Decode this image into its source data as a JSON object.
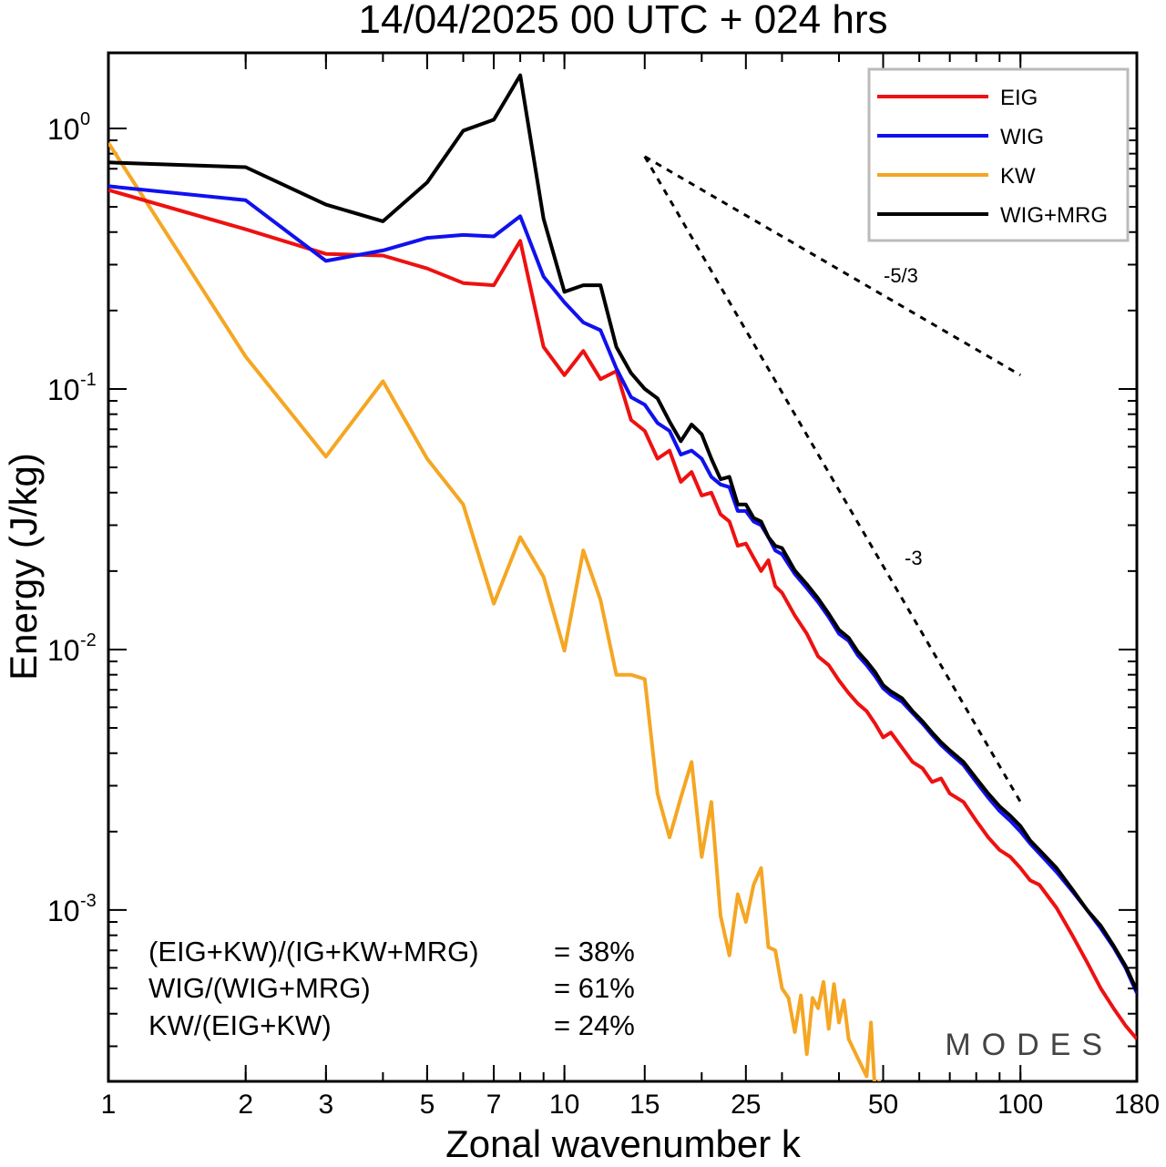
{
  "chart_data": {
    "type": "line",
    "title": "14/04/2025  00 UTC  + 024 hrs",
    "xlabel": "Zonal wavenumber k",
    "ylabel": "Energy (J/kg)",
    "xscale": "log",
    "yscale": "log",
    "xlim": [
      1,
      180
    ],
    "ylim": [
      0.00022,
      1.95
    ],
    "x_ticks": [
      1,
      2,
      3,
      5,
      7,
      10,
      15,
      25,
      50,
      100,
      180
    ],
    "y_ticks": [
      {
        "value": 1,
        "base": "10",
        "exp": "0"
      },
      {
        "value": 0.1,
        "base": "10",
        "exp": "-1"
      },
      {
        "value": 0.01,
        "base": "10",
        "exp": "-2"
      },
      {
        "value": 0.001,
        "base": "10",
        "exp": "-3"
      }
    ],
    "grid": false,
    "legend_position": "top-right",
    "series": [
      {
        "name": "EIG",
        "color": "#ee1111",
        "points": [
          [
            1,
            0.58
          ],
          [
            2,
            0.41
          ],
          [
            3,
            0.33
          ],
          [
            4,
            0.325
          ],
          [
            5,
            0.29
          ],
          [
            6,
            0.255
          ],
          [
            7,
            0.25
          ],
          [
            8,
            0.37
          ],
          [
            9,
            0.145
          ],
          [
            10,
            0.113
          ],
          [
            11,
            0.14
          ],
          [
            12,
            0.109
          ],
          [
            13,
            0.117
          ],
          [
            14,
            0.076
          ],
          [
            15,
            0.069
          ],
          [
            16,
            0.054
          ],
          [
            17,
            0.058
          ],
          [
            18,
            0.044
          ],
          [
            19,
            0.048
          ],
          [
            20,
            0.039
          ],
          [
            21,
            0.04
          ],
          [
            22,
            0.033
          ],
          [
            23,
            0.031
          ],
          [
            24,
            0.025
          ],
          [
            25,
            0.0255
          ],
          [
            26,
            0.0225
          ],
          [
            27,
            0.02
          ],
          [
            28,
            0.022
          ],
          [
            29,
            0.0175
          ],
          [
            30,
            0.0165
          ],
          [
            32,
            0.0135
          ],
          [
            34,
            0.0115
          ],
          [
            36,
            0.0094
          ],
          [
            38,
            0.0087
          ],
          [
            40,
            0.0076
          ],
          [
            42,
            0.0068
          ],
          [
            44,
            0.0062
          ],
          [
            46,
            0.0058
          ],
          [
            48,
            0.0052
          ],
          [
            50,
            0.0046
          ],
          [
            52,
            0.0048
          ],
          [
            55,
            0.0042
          ],
          [
            58,
            0.0037
          ],
          [
            61,
            0.0035
          ],
          [
            64,
            0.0031
          ],
          [
            67,
            0.0032
          ],
          [
            70,
            0.0028
          ],
          [
            75,
            0.0026
          ],
          [
            80,
            0.0022
          ],
          [
            85,
            0.0019
          ],
          [
            90,
            0.0017
          ],
          [
            95,
            0.0016
          ],
          [
            100,
            0.00145
          ],
          [
            105,
            0.0013
          ],
          [
            110,
            0.00125
          ],
          [
            120,
            0.00102
          ],
          [
            130,
            0.0008
          ],
          [
            140,
            0.00063
          ],
          [
            150,
            0.0005
          ],
          [
            160,
            0.00042
          ],
          [
            170,
            0.00036
          ],
          [
            180,
            0.00032
          ]
        ]
      },
      {
        "name": "WIG",
        "color": "#1111ee",
        "points": [
          [
            1,
            0.6
          ],
          [
            2,
            0.53
          ],
          [
            3,
            0.31
          ],
          [
            4,
            0.34
          ],
          [
            5,
            0.38
          ],
          [
            6,
            0.39
          ],
          [
            7,
            0.385
          ],
          [
            8,
            0.46
          ],
          [
            9,
            0.27
          ],
          [
            10,
            0.215
          ],
          [
            11,
            0.18
          ],
          [
            12,
            0.168
          ],
          [
            13,
            0.12
          ],
          [
            14,
            0.093
          ],
          [
            15,
            0.087
          ],
          [
            16,
            0.074
          ],
          [
            17,
            0.069
          ],
          [
            18,
            0.056
          ],
          [
            19,
            0.058
          ],
          [
            20,
            0.054
          ],
          [
            21,
            0.046
          ],
          [
            22,
            0.043
          ],
          [
            23,
            0.042
          ],
          [
            24,
            0.034
          ],
          [
            25,
            0.034
          ],
          [
            26,
            0.031
          ],
          [
            27,
            0.03
          ],
          [
            28,
            0.027
          ],
          [
            29,
            0.024
          ],
          [
            30,
            0.0232
          ],
          [
            32,
            0.0195
          ],
          [
            34,
            0.0172
          ],
          [
            36,
            0.0152
          ],
          [
            38,
            0.0133
          ],
          [
            40,
            0.0115
          ],
          [
            42,
            0.0108
          ],
          [
            44,
            0.0095
          ],
          [
            46,
            0.0087
          ],
          [
            48,
            0.0079
          ],
          [
            50,
            0.0071
          ],
          [
            52,
            0.0067
          ],
          [
            55,
            0.0063
          ],
          [
            58,
            0.0057
          ],
          [
            61,
            0.0052
          ],
          [
            64,
            0.0047
          ],
          [
            67,
            0.0043
          ],
          [
            70,
            0.004
          ],
          [
            75,
            0.0036
          ],
          [
            80,
            0.0031
          ],
          [
            85,
            0.0027
          ],
          [
            90,
            0.0024
          ],
          [
            95,
            0.0022
          ],
          [
            100,
            0.002
          ],
          [
            105,
            0.0018
          ],
          [
            110,
            0.00165
          ],
          [
            120,
            0.0014
          ],
          [
            130,
            0.00118
          ],
          [
            140,
            0.001
          ],
          [
            150,
            0.00085
          ],
          [
            160,
            0.00072
          ],
          [
            170,
            0.0006
          ],
          [
            180,
            0.00048
          ]
        ]
      },
      {
        "name": "KW",
        "color": "#f5a623",
        "points": [
          [
            1,
            0.88
          ],
          [
            2,
            0.133
          ],
          [
            3,
            0.055
          ],
          [
            4,
            0.107
          ],
          [
            5,
            0.054
          ],
          [
            6,
            0.036
          ],
          [
            7,
            0.015
          ],
          [
            8,
            0.027
          ],
          [
            9,
            0.019
          ],
          [
            10,
            0.0099
          ],
          [
            11,
            0.024
          ],
          [
            12,
            0.0155
          ],
          [
            13,
            0.008
          ],
          [
            14,
            0.008
          ],
          [
            15,
            0.0077
          ],
          [
            16,
            0.0028
          ],
          [
            17,
            0.0019
          ],
          [
            18,
            0.0027
          ],
          [
            19,
            0.0037
          ],
          [
            20,
            0.0016
          ],
          [
            21,
            0.0026
          ],
          [
            22,
            0.00095
          ],
          [
            23,
            0.00067
          ],
          [
            24,
            0.00115
          ],
          [
            25,
            0.0009
          ],
          [
            26,
            0.00125
          ],
          [
            27,
            0.00145
          ],
          [
            28,
            0.00072
          ],
          [
            29,
            0.0007
          ],
          [
            30,
            0.0005
          ],
          [
            31,
            0.00046
          ],
          [
            32,
            0.00034
          ],
          [
            33,
            0.00047
          ],
          [
            34,
            0.00028
          ],
          [
            35,
            0.00046
          ],
          [
            36,
            0.00042
          ],
          [
            37,
            0.00053
          ],
          [
            38,
            0.00035
          ],
          [
            39,
            0.00052
          ],
          [
            40,
            0.00037
          ],
          [
            41,
            0.00045
          ],
          [
            42,
            0.00032
          ],
          [
            44,
            0.00027
          ],
          [
            46,
            0.00023
          ],
          [
            47,
            0.00037
          ],
          [
            48,
            0.0002
          ],
          [
            49,
            0.00022
          ],
          [
            50,
            0.0002
          ]
        ]
      },
      {
        "name": "WIG+MRG",
        "color": "#000000",
        "points": [
          [
            1,
            0.74
          ],
          [
            2,
            0.71
          ],
          [
            3,
            0.51
          ],
          [
            4,
            0.44
          ],
          [
            5,
            0.62
          ],
          [
            6,
            0.98
          ],
          [
            7,
            1.08
          ],
          [
            8,
            1.6
          ],
          [
            9,
            0.45
          ],
          [
            10,
            0.236
          ],
          [
            11,
            0.25
          ],
          [
            12,
            0.25
          ],
          [
            13,
            0.145
          ],
          [
            14,
            0.115
          ],
          [
            15,
            0.1
          ],
          [
            16,
            0.092
          ],
          [
            17,
            0.075
          ],
          [
            18,
            0.063
          ],
          [
            19,
            0.073
          ],
          [
            20,
            0.067
          ],
          [
            21,
            0.054
          ],
          [
            22,
            0.045
          ],
          [
            23,
            0.046
          ],
          [
            24,
            0.036
          ],
          [
            25,
            0.036
          ],
          [
            26,
            0.032
          ],
          [
            27,
            0.031
          ],
          [
            28,
            0.027
          ],
          [
            29,
            0.025
          ],
          [
            30,
            0.0245
          ],
          [
            32,
            0.0201
          ],
          [
            34,
            0.0178
          ],
          [
            36,
            0.0157
          ],
          [
            38,
            0.0137
          ],
          [
            40,
            0.0119
          ],
          [
            42,
            0.0111
          ],
          [
            44,
            0.0098
          ],
          [
            46,
            0.009
          ],
          [
            48,
            0.0082
          ],
          [
            50,
            0.0073
          ],
          [
            52,
            0.0069
          ],
          [
            55,
            0.0065
          ],
          [
            58,
            0.0058
          ],
          [
            61,
            0.0053
          ],
          [
            64,
            0.0048
          ],
          [
            67,
            0.0044
          ],
          [
            70,
            0.0041
          ],
          [
            75,
            0.0037
          ],
          [
            80,
            0.0032
          ],
          [
            85,
            0.0028
          ],
          [
            90,
            0.0025
          ],
          [
            95,
            0.0023
          ],
          [
            100,
            0.0021
          ],
          [
            105,
            0.00185
          ],
          [
            110,
            0.0017
          ],
          [
            120,
            0.00145
          ],
          [
            130,
            0.0012
          ],
          [
            140,
            0.001
          ],
          [
            150,
            0.00087
          ],
          [
            160,
            0.00073
          ],
          [
            170,
            0.00061
          ],
          [
            180,
            0.00049
          ]
        ]
      }
    ],
    "reference_lines": [
      {
        "label": "-5/3",
        "from": [
          15,
          0.78
        ],
        "to": [
          100,
          0.113
        ]
      },
      {
        "label": "-3",
        "from": [
          15,
          0.78
        ],
        "to": [
          100,
          0.0026
        ]
      }
    ],
    "annotations": [
      {
        "label": "(EIG+KW)/(IG+KW+MRG)",
        "value": "= 38%"
      },
      {
        "label": "WIG/(WIG+MRG)",
        "value": "= 61%"
      },
      {
        "label": "KW/(EIG+KW)",
        "value": "= 24%"
      }
    ],
    "watermark": "MODES"
  }
}
